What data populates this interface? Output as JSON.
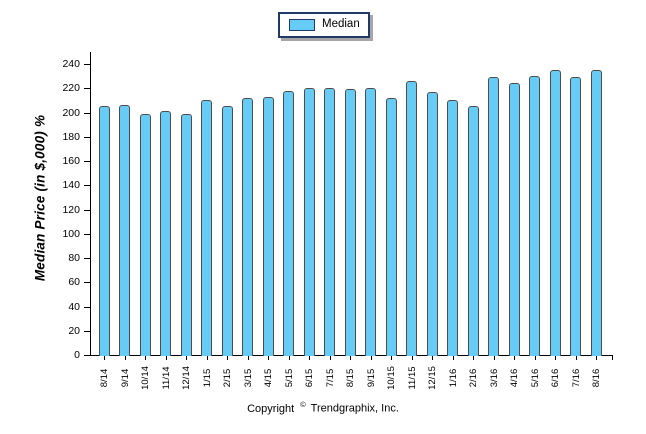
{
  "legend": {
    "label": "Median"
  },
  "footer": {
    "prefix": "Copyright",
    "symbol": "©",
    "suffix": "Trendgraphix, Inc."
  },
  "chart_data": {
    "type": "bar",
    "title": "",
    "xlabel": "",
    "ylabel": "Median Price (in $,000) %",
    "categories": [
      "8/14",
      "9/14",
      "10/14",
      "11/14",
      "12/14",
      "1/15",
      "2/15",
      "3/15",
      "4/15",
      "5/15",
      "6/15",
      "7/15",
      "8/15",
      "9/15",
      "10/15",
      "11/15",
      "12/15",
      "1/16",
      "2/16",
      "3/16",
      "4/16",
      "5/16",
      "6/16",
      "7/16",
      "8/16"
    ],
    "series": [
      {
        "name": "Median",
        "values": [
          205,
          206,
          199,
          201,
          199,
          210,
          205,
          212,
          213,
          218,
          220,
          220,
          219,
          220,
          212,
          226,
          217,
          210,
          205,
          229,
          224,
          230,
          235,
          229,
          235
        ]
      }
    ],
    "ylim": [
      0,
      240
    ],
    "ytick_step": 20,
    "yticks": [
      0,
      20,
      40,
      60,
      80,
      100,
      120,
      140,
      160,
      180,
      200,
      220,
      240
    ],
    "grid": "off",
    "legend_position": "top-center",
    "colors": {
      "bar_fill": "#66CCF5",
      "bar_border": "#4D4D4D",
      "legend_border": "#1F3A68",
      "legend_shadow": "#A6A6A6",
      "axis": "#000000",
      "text": "#000000",
      "background": "#FFFFFF"
    }
  }
}
